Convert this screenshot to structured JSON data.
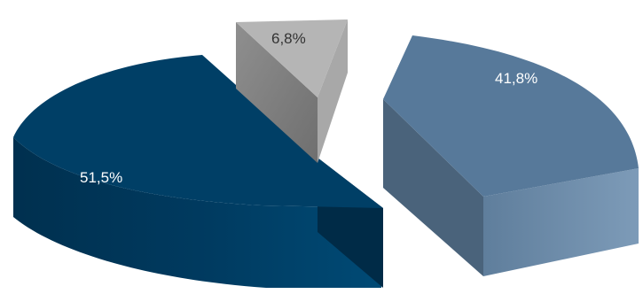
{
  "chart_data": {
    "type": "pie",
    "style": "3d-exploded",
    "slices": [
      {
        "label": "51,5%",
        "value": 51.5,
        "color": "#003f66"
      },
      {
        "label": "6,8%",
        "value": 6.8,
        "color": "#9c9c9c"
      },
      {
        "label": "41,8%",
        "value": 41.8,
        "color": "#57799a"
      }
    ],
    "legend": "none"
  }
}
